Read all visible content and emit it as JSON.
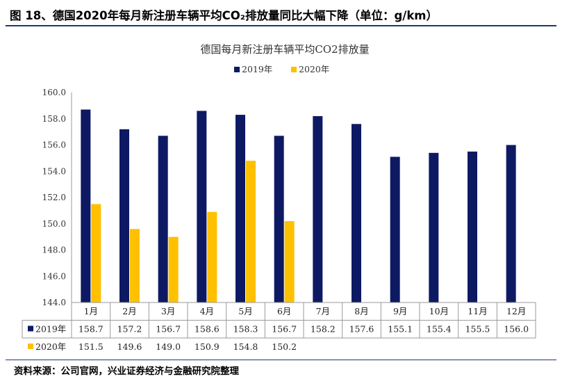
{
  "figure_title": "图 18、德国2020年每月新注册车辆平均CO₂排放量同比大幅下降（单位：g/km）",
  "source": "资料来源：公司官网，兴业证券经济与金融研究院整理",
  "chart_data": {
    "type": "bar",
    "title": "德国每月新注册车辆平均CO2排放量",
    "categories": [
      "1月",
      "2月",
      "3月",
      "4月",
      "5月",
      "6月",
      "7月",
      "8月",
      "9月",
      "10月",
      "11月",
      "12月"
    ],
    "series": [
      {
        "name": "2019年",
        "color": "#0d1a63",
        "values": [
          158.7,
          157.2,
          156.7,
          158.6,
          158.3,
          156.7,
          158.2,
          157.6,
          155.1,
          155.4,
          155.5,
          156.0
        ],
        "labels": [
          "158.7",
          "157.2",
          "156.7",
          "158.6",
          "158.3",
          "156.7",
          "158.2",
          "157.6",
          "155.1",
          "155.4",
          "155.5",
          "156.0"
        ]
      },
      {
        "name": "2020年",
        "color": "#ffc000",
        "values": [
          151.5,
          149.6,
          149.0,
          150.9,
          154.8,
          150.2,
          null,
          null,
          null,
          null,
          null,
          null
        ],
        "labels": [
          "151.5",
          "149.6",
          "149.0",
          "150.9",
          "154.8",
          "150.2",
          "",
          "",
          "",
          "",
          "",
          ""
        ]
      }
    ],
    "ylim": [
      144.0,
      160.0
    ],
    "yticks": [
      "144.0",
      "146.0",
      "148.0",
      "150.0",
      "152.0",
      "154.0",
      "156.0",
      "158.0",
      "160.0"
    ],
    "legend_position": "top",
    "data_table": true,
    "grid": false
  }
}
